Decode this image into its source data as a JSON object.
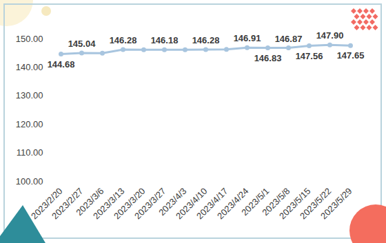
{
  "chart_data": {
    "type": "line",
    "categories": [
      "2023/2/20",
      "2023/2/27",
      "2023/3/6",
      "2023/3/13",
      "2023/3/20",
      "2023/3/27",
      "2023/4/3",
      "2023/4/10",
      "2023/4/17",
      "2023/4/24",
      "2023/5/1",
      "2023/5/8",
      "2023/5/15",
      "2023/5/22",
      "2023/5/29"
    ],
    "values": [
      144.68,
      145.04,
      145.0,
      146.28,
      146.2,
      146.18,
      146.2,
      146.28,
      146.3,
      146.91,
      146.83,
      146.87,
      147.56,
      147.9,
      147.65
    ],
    "value_labels": [
      "144.68",
      "145.04",
      null,
      "146.28",
      null,
      "146.18",
      null,
      "146.28",
      null,
      "146.91",
      "146.83",
      "146.87",
      "147.56",
      "147.90",
      "147.65"
    ],
    "data_labels": true,
    "color": "#a8c5df",
    "marker": "circle",
    "grid": false,
    "ylim": [
      100,
      150
    ],
    "yticks": [
      {
        "value": 100,
        "label": "100.00"
      },
      {
        "value": 110,
        "label": "110.00"
      },
      {
        "value": 120,
        "label": "120.00"
      },
      {
        "value": 130,
        "label": "130.00"
      },
      {
        "value": 140,
        "label": "140.00"
      },
      {
        "value": 150,
        "label": "150.00"
      }
    ]
  }
}
